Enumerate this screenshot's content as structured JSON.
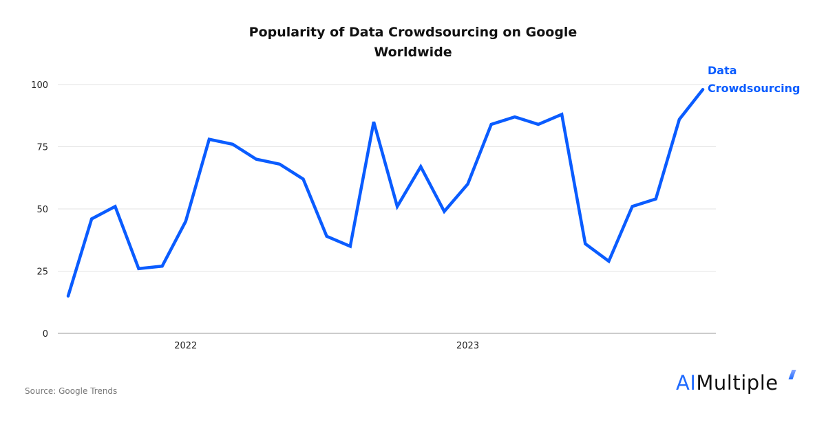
{
  "chart_data": {
    "type": "line",
    "title": "Popularity of Data Crowdsourcing on Google Worldwide",
    "title_lines": [
      "Popularity of Data Crowdsourcing on Google",
      "Worldwide"
    ],
    "xlabel": "",
    "ylabel": "",
    "ylim": [
      0,
      100
    ],
    "yticks": [
      0,
      25,
      50,
      75,
      100
    ],
    "grid": true,
    "legend_placement": "right end of line",
    "x": [
      "2021-08",
      "2021-09",
      "2021-10",
      "2021-11",
      "2021-12",
      "2022-01",
      "2022-02",
      "2022-03",
      "2022-04",
      "2022-05",
      "2022-06",
      "2022-07",
      "2022-08",
      "2022-09",
      "2022-10",
      "2022-11",
      "2022-12",
      "2023-01",
      "2023-02",
      "2023-03",
      "2023-04",
      "2023-05",
      "2023-06",
      "2023-07",
      "2023-08",
      "2023-09",
      "2023-10",
      "2023-11"
    ],
    "xticks": [
      {
        "at": "2022-01",
        "label": "2022"
      },
      {
        "at": "2023-01",
        "label": "2023"
      }
    ],
    "series": [
      {
        "name": "Data Crowdsourcing",
        "name_lines": [
          "Data",
          "Crowdsourcing"
        ],
        "color": "#0a5cff",
        "values": [
          15,
          46,
          51,
          26,
          27,
          45,
          78,
          76,
          70,
          68,
          62,
          39,
          35,
          85,
          51,
          67,
          49,
          60,
          84,
          87,
          84,
          88,
          36,
          29,
          51,
          54,
          86,
          98
        ]
      }
    ]
  },
  "footer": {
    "source": "Source: Google Trends",
    "logo_ai": "AI",
    "logo_rest": "Multiple"
  },
  "colors": {
    "accent": "#0a5cff",
    "grid": "#e3e3e3",
    "axis": "#999999"
  }
}
